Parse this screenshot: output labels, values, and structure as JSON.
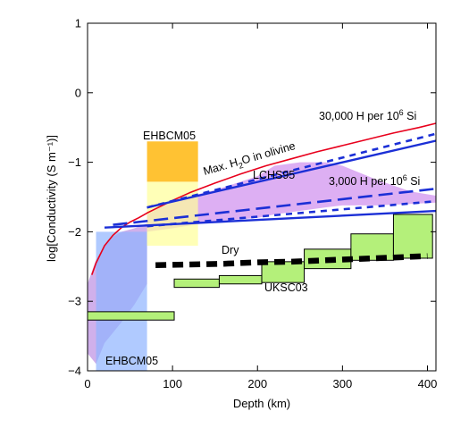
{
  "chart_data": {
    "type": "line",
    "xlabel": "Depth (km)",
    "ylabel": "log[Conductivity (S m⁻¹)]",
    "xlim": [
      0,
      410
    ],
    "ylim": [
      -4,
      1
    ],
    "xticks": [
      0,
      100,
      200,
      300,
      400
    ],
    "yticks": [
      -4,
      -3,
      -2,
      -1,
      0,
      1
    ],
    "grid": false,
    "legend": "none",
    "colors": {
      "red_curve": "#e8001c",
      "blue_lines": "#1b2fd6",
      "black_dashed": "#000000",
      "ukscb_fill": "#b4f07a",
      "lchs95_band": "#d9a6f2",
      "ehbcm05_blue": "#8fb3ff",
      "ehbcm05_yellow": "#ffff99",
      "ehbcm05_orange": "#ffc233",
      "left_band": "#c8a2e8"
    },
    "series": [
      {
        "name": "Max. H2O in olivine",
        "style": "solid-red",
        "x": [
          5,
          10,
          20,
          30,
          40,
          50,
          60,
          70,
          80,
          100,
          120,
          150,
          180,
          210,
          240,
          270,
          300,
          330,
          360,
          390,
          410
        ],
        "y": [
          -2.62,
          -2.45,
          -2.2,
          -2.05,
          -1.94,
          -1.86,
          -1.8,
          -1.73,
          -1.67,
          -1.55,
          -1.44,
          -1.3,
          -1.17,
          -1.05,
          -0.95,
          -0.85,
          -0.76,
          -0.67,
          -0.58,
          -0.5,
          -0.44
        ]
      },
      {
        "name": "30,000 H per 10⁶ Si (solid)",
        "style": "solid-blue",
        "x": [
          70,
          410
        ],
        "y": [
          -1.65,
          -0.69
        ]
      },
      {
        "name": "30,000 H per 10⁶ Si (dashed)",
        "style": "dash-blue",
        "x": [
          70,
          410
        ],
        "y": [
          -1.65,
          -0.59
        ]
      },
      {
        "name": "3,000 H per 10⁶ Si (solid)",
        "style": "solid-blue",
        "x": [
          20,
          410
        ],
        "y": [
          -1.94,
          -1.7
        ]
      },
      {
        "name": "3,000 H per 10⁶ Si (long dash)",
        "style": "longdash-blue",
        "x": [
          30,
          410
        ],
        "y": [
          -1.9,
          -1.38
        ]
      },
      {
        "name": "3,000 H per 10⁶ Si (short dash)",
        "style": "dash-blue",
        "x": [
          70,
          410
        ],
        "y": [
          -1.92,
          -1.56
        ]
      },
      {
        "name": "Dry",
        "style": "dash-black-thick",
        "x": [
          80,
          120,
          160,
          200,
          240,
          280,
          320,
          360,
          400
        ],
        "y": [
          -2.48,
          -2.47,
          -2.46,
          -2.44,
          -2.43,
          -2.41,
          -2.39,
          -2.37,
          -2.35
        ]
      }
    ],
    "ukcs03_steps": [
      {
        "x0": 0,
        "x1": 102,
        "ylo": -3.27,
        "yhi": -3.15
      },
      {
        "x0": 102,
        "x1": 155,
        "ylo": -2.8,
        "yhi": -2.68
      },
      {
        "x0": 155,
        "x1": 205,
        "ylo": -2.75,
        "yhi": -2.63
      },
      {
        "x0": 205,
        "x1": 255,
        "ylo": -2.73,
        "yhi": -2.43
      },
      {
        "x0": 255,
        "x1": 310,
        "ylo": -2.53,
        "yhi": -2.25
      },
      {
        "x0": 310,
        "x1": 360,
        "ylo": -2.41,
        "yhi": -2.03
      },
      {
        "x0": 360,
        "x1": 406,
        "ylo": -2.38,
        "yhi": -1.75
      }
    ],
    "ehbcm05_boxes": [
      {
        "name": "blue",
        "x0": 10,
        "x1": 70,
        "ylo": -4.0,
        "yhi": -2.0
      },
      {
        "name": "yellow",
        "x0": 70,
        "x1": 130,
        "ylo": -2.2,
        "yhi": -1.28
      },
      {
        "name": "orange",
        "x0": 70,
        "x1": 130,
        "ylo": -1.28,
        "yhi": -0.7
      }
    ],
    "lchs95_band": {
      "x": [
        70,
        100,
        150,
        200,
        220,
        250,
        280,
        300,
        340,
        380,
        410
      ],
      "upper": [
        -1.75,
        -1.55,
        -1.4,
        -1.2,
        -1.05,
        -1.0,
        -1.0,
        -1.05,
        -1.25,
        -1.42,
        -1.48
      ],
      "lower": [
        -2.0,
        -1.95,
        -1.85,
        -1.8,
        -1.75,
        -1.7,
        -1.65,
        -1.62,
        -1.62,
        -1.6,
        -1.58
      ]
    },
    "left_band": {
      "x": [
        0,
        10,
        20,
        30,
        40,
        55,
        70
      ],
      "upper": [
        -2.75,
        -2.4,
        -2.2,
        -2.07,
        -2.0,
        -1.95,
        -1.88
      ],
      "lower": [
        -3.75,
        -3.9,
        -3.6,
        -3.45,
        -3.3,
        -3.05,
        -2.75
      ]
    },
    "annotations": [
      {
        "key": "ehbcm05_top",
        "text": "EHBCM05"
      },
      {
        "key": "ehbcm05_bottom",
        "text": "EHBCM05"
      },
      {
        "key": "lchs95",
        "text": "LCHS95"
      },
      {
        "key": "dry",
        "text": "Dry"
      },
      {
        "key": "ukcs03",
        "text": "UKSC03"
      },
      {
        "key": "h30000",
        "text": "30,000 H per 10",
        "sup": "6",
        "suffix": " Si"
      },
      {
        "key": "h3000",
        "text": "3,000 H per 10",
        "sup": "6",
        "suffix": " Si"
      },
      {
        "key": "maxh2o",
        "text": "Max. H",
        "sub": "2",
        "suffix": "O in olivine"
      }
    ]
  }
}
